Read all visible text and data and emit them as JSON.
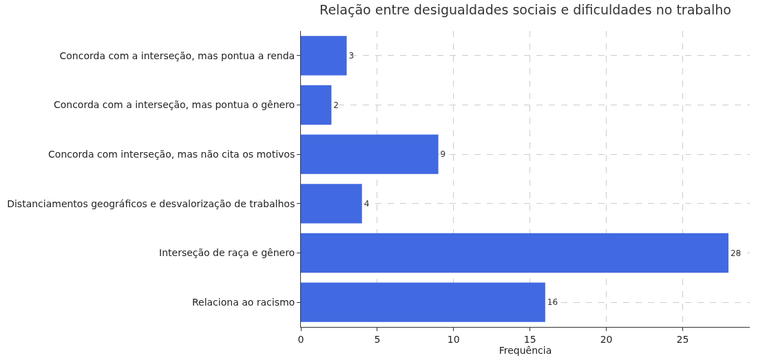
{
  "chart_data": {
    "type": "bar",
    "orientation": "horizontal",
    "title": "Relação entre desigualdades sociais e dificuldades no trabalho",
    "xlabel": "Frequência",
    "categories": [
      "Concorda com a interseção, mas pontua a renda",
      "Concorda com a interseção, mas pontua o gênero",
      "Concorda com interseção, mas não cita os motivos",
      "Distanciamentos geográficos e desvalorização de trabalhos",
      "Interseção de raça e gênero",
      "Relaciona ao racismo"
    ],
    "values": [
      3,
      2,
      9,
      4,
      28,
      16
    ],
    "color": "#4169e1",
    "xlim": [
      0,
      29.4
    ],
    "xticks": [
      0,
      5,
      10,
      15,
      20,
      25
    ],
    "grid": true,
    "data_labels": true
  }
}
